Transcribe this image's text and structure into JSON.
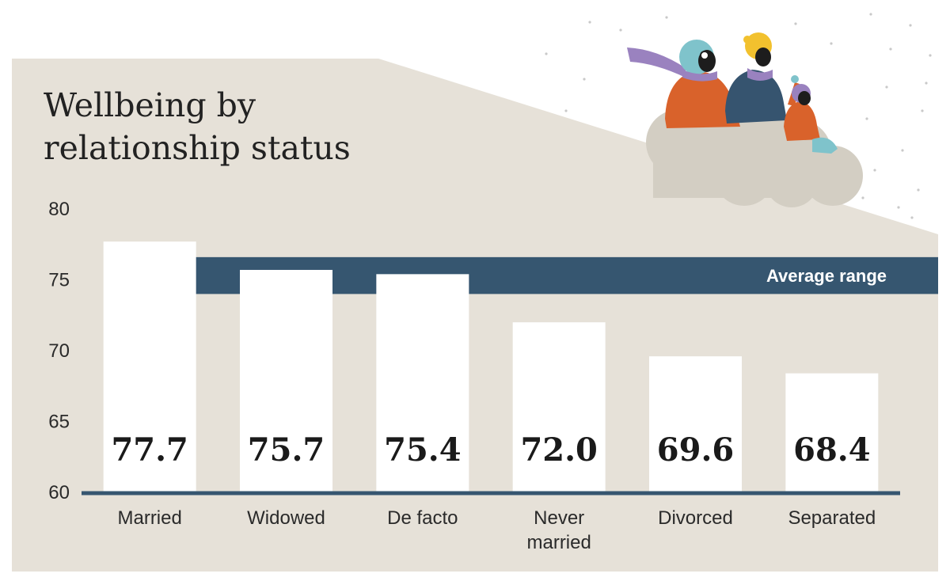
{
  "title_lines": [
    "Wellbeing by",
    "relationship status"
  ],
  "colors": {
    "panel": "#e6e1d8",
    "band": "#365670",
    "bar": "#ffffff",
    "axis": "#365670",
    "text": "#222222",
    "cloud": "#d3cec3",
    "orange": "#d9622b",
    "navy": "#36546f",
    "teal": "#7fc3cb",
    "purple": "#9a82bf",
    "yellow": "#f2c12e"
  },
  "illustration": {
    "subject": "people-sledding-on-cloud"
  },
  "chart_data": {
    "type": "bar",
    "title": "Wellbeing by relationship status",
    "categories": [
      [
        "Married"
      ],
      [
        "Widowed"
      ],
      [
        "De facto"
      ],
      [
        "Never",
        "married"
      ],
      [
        "Divorced"
      ],
      [
        "Separated"
      ]
    ],
    "values": [
      77.7,
      75.7,
      75.4,
      72.0,
      69.6,
      68.4
    ],
    "value_labels": [
      "77.7",
      "75.7",
      "75.4",
      "72.0",
      "69.6",
      "68.4"
    ],
    "ylim": [
      60,
      80
    ],
    "yticks": [
      "80",
      "75",
      "70",
      "65",
      "60"
    ],
    "ytick_values": [
      80,
      75,
      70,
      65,
      60
    ],
    "reference_band": {
      "label": "Average range",
      "low": 74.0,
      "high": 76.6
    },
    "grid": false
  }
}
